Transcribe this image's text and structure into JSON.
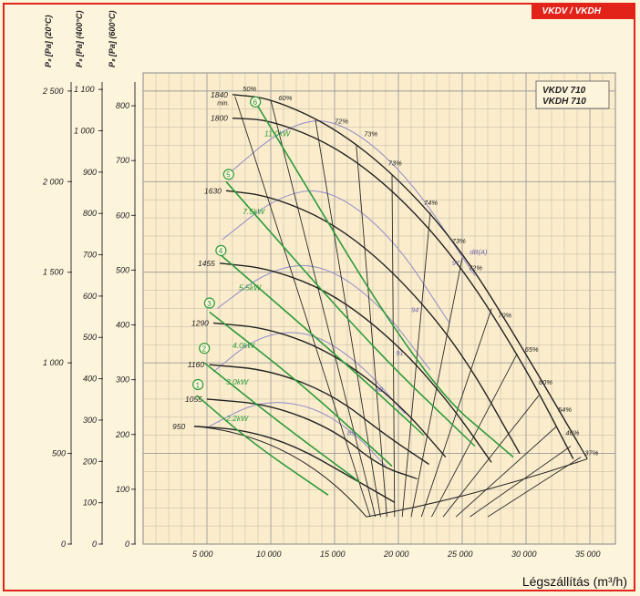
{
  "header": {
    "tag": "VKDV / VKDH"
  },
  "chart_data": {
    "type": "line",
    "legend": [
      "VKDV 710",
      "VKDH 710"
    ],
    "xlabel": "Légszállítás  (m³/h)",
    "xlim": [
      0,
      37000
    ],
    "ylim": [
      0,
      2600
    ],
    "xticks": [
      5000,
      10000,
      15000,
      20000,
      25000,
      30000,
      35000
    ],
    "xtick_labels": [
      "5 000",
      "10 000",
      "15 000",
      "20 000",
      "25 000",
      "30 000",
      "35 000"
    ],
    "yaxes": [
      {
        "label": "Pₛ [Pa] (20°C)",
        "ticks": [
          0,
          500,
          1000,
          1500,
          2000,
          2500
        ],
        "tick_labels": [
          "0",
          "500",
          "1 000",
          "1 500",
          "2 000",
          "2 500"
        ]
      },
      {
        "label": "Pₛ [Pa] (400°C)",
        "ticks": [
          0,
          100,
          200,
          300,
          400,
          500,
          600,
          700,
          800,
          900,
          1000,
          1100
        ],
        "tick_labels": [
          "0",
          "100",
          "200",
          "300",
          "400",
          "500",
          "600",
          "700",
          "800",
          "900",
          "1 000",
          "1 100"
        ]
      },
      {
        "label": "Pₛ [Pa] (600°C)",
        "ticks": [
          0,
          100,
          200,
          300,
          400,
          500,
          600,
          700,
          800
        ],
        "tick_labels": [
          "0",
          "100",
          "200",
          "300",
          "400",
          "500",
          "600",
          "700",
          "800"
        ]
      }
    ],
    "speed_curves": [
      {
        "rpm": "1840",
        "points": [
          [
            7000,
            2480
          ],
          [
            10000,
            2460
          ],
          [
            15000,
            2300
          ],
          [
            20000,
            2020
          ],
          [
            25000,
            1620
          ],
          [
            30000,
            1050
          ],
          [
            34800,
            470
          ]
        ]
      },
      {
        "rpm": "1800",
        "points": [
          [
            7000,
            2350
          ],
          [
            10000,
            2340
          ],
          [
            15000,
            2200
          ],
          [
            20000,
            1930
          ],
          [
            25000,
            1530
          ],
          [
            30000,
            970
          ],
          [
            33700,
            470
          ]
        ]
      },
      {
        "rpm": "1630",
        "points": [
          [
            6500,
            1950
          ],
          [
            10000,
            1920
          ],
          [
            15000,
            1770
          ],
          [
            20000,
            1480
          ],
          [
            25000,
            1060
          ],
          [
            29500,
            500
          ]
        ]
      },
      {
        "rpm": "1455",
        "points": [
          [
            6000,
            1550
          ],
          [
            10000,
            1520
          ],
          [
            15000,
            1380
          ],
          [
            20000,
            1100
          ],
          [
            24000,
            780
          ],
          [
            27300,
            450
          ]
        ]
      },
      {
        "rpm": "1290",
        "points": [
          [
            5500,
            1220
          ],
          [
            10000,
            1190
          ],
          [
            15000,
            1050
          ],
          [
            20000,
            780
          ],
          [
            23700,
            480
          ]
        ]
      },
      {
        "rpm": "1160",
        "points": [
          [
            5200,
            990
          ],
          [
            10000,
            960
          ],
          [
            15000,
            820
          ],
          [
            19000,
            600
          ],
          [
            22400,
            440
          ]
        ]
      },
      {
        "rpm": "1055",
        "points": [
          [
            5000,
            800
          ],
          [
            10000,
            770
          ],
          [
            15000,
            630
          ],
          [
            18500,
            430
          ],
          [
            21500,
            360
          ]
        ]
      },
      {
        "rpm": "950",
        "points": [
          [
            4000,
            650
          ],
          [
            8000,
            630
          ],
          [
            12000,
            540
          ],
          [
            16000,
            380
          ],
          [
            19700,
            230
          ]
        ]
      }
    ],
    "efficiency_labels": [
      "50%",
      "60%",
      "72%",
      "73%",
      "73%",
      "74%",
      "73%",
      "72%",
      "70%",
      "65%",
      "60%",
      "54%",
      "46%",
      "37%"
    ],
    "power_labels": [
      "11.0kW",
      "7.5kW",
      "5.5kW",
      "4.0kW",
      "3.0kW",
      "2.2kW"
    ],
    "motor_numbers": [
      "1",
      "2",
      "3",
      "4",
      "5",
      "6"
    ],
    "sound_labels": [
      "85",
      "88",
      "91",
      "94",
      "97",
      "dB(A)"
    ],
    "min_label": "min."
  }
}
